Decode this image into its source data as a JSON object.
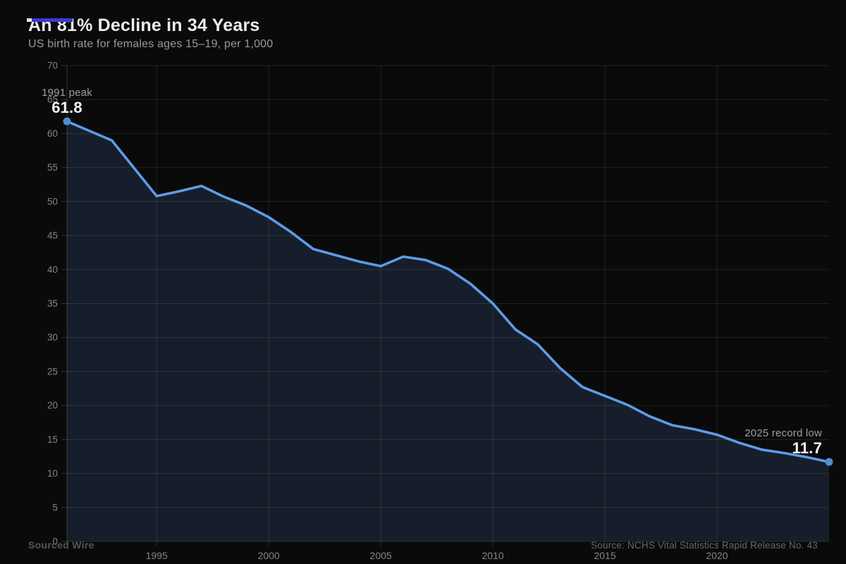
{
  "header": {
    "title": "An 81% Decline in 34 Years",
    "subtitle": "US birth rate for females ages 15–19, per 1,000",
    "accent_color": "#3b3bd9"
  },
  "annotations": {
    "peak_label": "1991 peak",
    "peak_value": "61.8",
    "low_label": "2025 record low",
    "low_value": "11.7"
  },
  "footer": {
    "brand": "Sourced Wire",
    "source": "Source: NCHS Vital Statistics Rapid Release No. 43"
  },
  "chart_data": {
    "type": "area",
    "title": "An 81% Decline in 34 Years",
    "subtitle": "US birth rate for females ages 15–19, per 1,000",
    "xlabel": "",
    "ylabel": "",
    "x": [
      1991,
      1992,
      1993,
      1994,
      1995,
      1996,
      1997,
      1998,
      1999,
      2000,
      2001,
      2002,
      2003,
      2004,
      2005,
      2006,
      2007,
      2008,
      2009,
      2010,
      2011,
      2012,
      2013,
      2014,
      2015,
      2016,
      2017,
      2018,
      2019,
      2020,
      2021,
      2022,
      2023,
      2024,
      2025
    ],
    "values": [
      61.8,
      60.4,
      59.0,
      54.9,
      50.8,
      51.5,
      52.3,
      50.7,
      49.4,
      47.7,
      45.5,
      43.0,
      42.1,
      41.2,
      40.5,
      41.9,
      41.4,
      40.1,
      37.9,
      35.0,
      31.2,
      29.0,
      25.5,
      22.7,
      21.4,
      20.1,
      18.4,
      17.1,
      16.5,
      15.7,
      14.5,
      13.5,
      13.0,
      12.4,
      11.7
    ],
    "xlim": [
      1991,
      2025
    ],
    "ylim": [
      0,
      70
    ],
    "yticks": [
      0,
      5,
      10,
      15,
      20,
      25,
      30,
      35,
      40,
      45,
      50,
      55,
      60,
      65,
      70
    ],
    "xticks": [
      1995,
      2000,
      2005,
      2010,
      2015,
      2020
    ],
    "grid": true,
    "legend_position": "none",
    "line_color": "#5d9ce6",
    "fill_color": "#161e2b",
    "dot_color": "#4e8ed2",
    "grid_color": "rgba(255,255,255,0.10)",
    "axis_color": "rgba(255,255,255,0.16)",
    "tick_label_color": "#84848b",
    "annotated_points": [
      {
        "year": 1991,
        "value": 61.8,
        "label": "1991 peak"
      },
      {
        "year": 2025,
        "value": 11.7,
        "label": "2025 record low"
      }
    ]
  }
}
